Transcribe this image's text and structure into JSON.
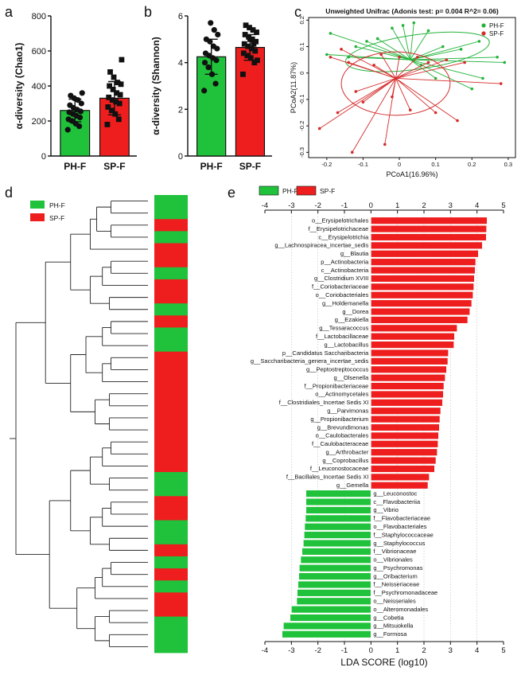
{
  "colors": {
    "ph": "#1fc23a",
    "sp": "#ee1e1e",
    "ph_line": "#22b33a",
    "sp_line": "#d42b2b"
  },
  "panels": {
    "a": "a",
    "b": "b",
    "c": "c",
    "d": "d",
    "e": "e"
  },
  "legend": {
    "ph": "PH-F",
    "sp": "SP-F"
  },
  "chart_data": [
    {
      "id": "a",
      "type": "bar",
      "categories": [
        "PH-F",
        "SP-F"
      ],
      "values": [
        260,
        330
      ],
      "errors": [
        65,
        95
      ],
      "ylabel": "α-diversity (Chao1)",
      "ylim": [
        0,
        800
      ],
      "yticks": [
        0,
        200,
        400,
        600,
        800
      ],
      "points": [
        [
          150,
          170,
          185,
          200,
          210,
          220,
          230,
          240,
          250,
          255,
          265,
          275,
          290,
          300,
          320,
          330,
          345,
          360
        ],
        [
          180,
          210,
          240,
          260,
          280,
          300,
          310,
          320,
          335,
          350,
          360,
          380,
          400,
          410,
          420,
          450,
          480,
          550
        ]
      ]
    },
    {
      "id": "b",
      "type": "bar",
      "categories": [
        "PH-F",
        "SP-F"
      ],
      "values": [
        4.25,
        4.65
      ],
      "errors": [
        0.75,
        0.55
      ],
      "ylabel": "α-diversity (Shannon)",
      "ylim": [
        0,
        6
      ],
      "yticks": [
        0,
        2,
        4,
        6
      ],
      "points": [
        [
          2.8,
          3.1,
          3.5,
          3.8,
          4.0,
          4.1,
          4.2,
          4.3,
          4.4,
          4.6,
          4.7,
          4.9,
          5.0,
          5.2,
          5.4,
          5.7
        ],
        [
          3.5,
          4.0,
          4.2,
          4.3,
          4.4,
          4.5,
          4.6,
          4.7,
          4.8,
          4.9,
          5.0,
          5.1,
          5.2,
          5.3,
          5.4,
          5.5,
          5.6,
          4.1,
          4.8,
          5.0
        ]
      ]
    },
    {
      "id": "c",
      "type": "scatter",
      "title": "Unweighted Unifrac (Adonis test: p= 0.004  R^2= 0.06)",
      "xlabel": "PCoA1(16.96%)",
      "ylabel": "PCoA2(11.87%)",
      "xlim": [
        -0.25,
        0.32
      ],
      "ylim": [
        -0.32,
        0.21
      ],
      "xticks": [
        -0.2,
        -0.1,
        0,
        0.1,
        0.2,
        0.3
      ],
      "yticks": [
        -0.3,
        -0.2,
        -0.1,
        0,
        0.1,
        0.2
      ],
      "groups": [
        {
          "name": "PH-F",
          "centroid": [
            0.03,
            0.05
          ],
          "ellipse": {
            "cx": 0.05,
            "cy": 0.08,
            "rx": 0.2,
            "ry": 0.065,
            "angle": -8
          },
          "points": [
            [
              -0.19,
              0.15
            ],
            [
              -0.12,
              0.1
            ],
            [
              -0.09,
              0.12
            ],
            [
              -0.06,
              0.13
            ],
            [
              -0.02,
              0.17
            ],
            [
              0.01,
              0.18
            ],
            [
              0.04,
              0.19
            ],
            [
              0.08,
              0.16
            ],
            [
              0.12,
              0.1
            ],
            [
              0.17,
              0.09
            ],
            [
              0.22,
              0.12
            ],
            [
              0.27,
              0.06
            ],
            [
              0.29,
              0.04
            ],
            [
              0.23,
              -0.02
            ],
            [
              0.2,
              -0.06
            ],
            [
              0.1,
              -0.02
            ],
            [
              0.06,
              0.03
            ],
            [
              -0.2,
              0.07
            ],
            [
              -0.14,
              0.06
            ]
          ]
        },
        {
          "name": "SP-F",
          "centroid": [
            -0.01,
            -0.02
          ],
          "ellipse": {
            "cx": -0.01,
            "cy": -0.04,
            "rx": 0.15,
            "ry": 0.12,
            "angle": 0
          },
          "points": [
            [
              -0.22,
              -0.21
            ],
            [
              -0.19,
              0.06
            ],
            [
              -0.16,
              0.09
            ],
            [
              -0.14,
              0.04
            ],
            [
              -0.12,
              -0.07
            ],
            [
              -0.1,
              -0.11
            ],
            [
              -0.07,
              0.03
            ],
            [
              -0.05,
              0.07
            ],
            [
              -0.02,
              -0.09
            ],
            [
              0.0,
              0.06
            ],
            [
              0.03,
              -0.14
            ],
            [
              0.05,
              0.06
            ],
            [
              0.08,
              0.04
            ],
            [
              0.1,
              -0.15
            ],
            [
              0.13,
              0.05
            ],
            [
              0.16,
              -0.18
            ],
            [
              0.18,
              0.04
            ],
            [
              0.28,
              -0.04
            ],
            [
              -0.13,
              -0.3
            ],
            [
              -0.04,
              -0.27
            ],
            [
              -0.17,
              -0.15
            ]
          ]
        }
      ]
    },
    {
      "id": "d",
      "type": "dendrogram",
      "leaf_groups": [
        "PH-F",
        "PH-F",
        "SP-F",
        "PH-F",
        "SP-F",
        "SP-F",
        "PH-F",
        "SP-F",
        "SP-F",
        "PH-F",
        "SP-F",
        "PH-F",
        "PH-F",
        "SP-F",
        "SP-F",
        "SP-F",
        "SP-F",
        "SP-F",
        "SP-F",
        "SP-F",
        "SP-F",
        "SP-F",
        "SP-F",
        "PH-F",
        "PH-F",
        "SP-F",
        "SP-F",
        "PH-F",
        "PH-F",
        "SP-F",
        "PH-F",
        "SP-F",
        "PH-F",
        "SP-F",
        "SP-F",
        "PH-F",
        "PH-F",
        "PH-F"
      ],
      "leaf_lengths": [
        0.82,
        0.88,
        0.78,
        0.72,
        0.9,
        0.84,
        0.76,
        0.86,
        0.8,
        0.7,
        0.83,
        0.89,
        0.75,
        0.81,
        0.87,
        0.74,
        0.85,
        0.79,
        0.91,
        0.77,
        0.83,
        0.72,
        0.88,
        0.8,
        0.76,
        0.86,
        0.82,
        0.9,
        0.74,
        0.84,
        0.78,
        0.88,
        0.73,
        0.81,
        0.86,
        0.77,
        0.83,
        0.79
      ]
    },
    {
      "id": "e",
      "type": "bar",
      "orientation": "horizontal",
      "xlabel": "LDA SCORE (log10)",
      "xlim": [
        -4,
        5
      ],
      "xticks": [
        -4,
        -3,
        -2,
        -1,
        0,
        1,
        2,
        3,
        4,
        5
      ],
      "categories": [
        "o__Erysipelotrichales",
        "f__Erysipelotrichaceae",
        "c__Erysipelotrichia",
        "g__Lachnospiracea_incertae_sedis",
        "g__Blautia",
        "p__Actinobacteria",
        "c__Actinobacteria",
        "g__Clostridium XVIII",
        "f__Coriobacteriaceae",
        "o__Coriobacteriales",
        "g__Holdemanella",
        "g__Dorea",
        "g__Ezakiella",
        "g__Tessaracoccus",
        "f__Lactobacillaceae",
        "g__Lactobacillus",
        "p__Candidatus Saccharibacteria",
        "g__Saccharibacteria_genera_incertae_sedis",
        "g__Peptostreptococcus",
        "g__Olsenella",
        "f__Propionibacteriaceae",
        "o__Actinomycetales",
        "f__Clostridiales_Incertae Sedis XI",
        "g__Parvimonas",
        "g__Propionibacterium",
        "g__Brevundimonas",
        "o__Caulobacterales",
        "f__Caulobacteraceae",
        "g__Arthrobacter",
        "g__Coprobacillus",
        "f__Leuconostocaceae",
        "f__Bacillales_Incertae Sedis XI",
        "g__Gemella",
        "g__Leuconostoc",
        "c__Flavobacteriia",
        "g__Vibrio",
        "f__Flavobacteriaceae",
        "o__Flavobacteriales",
        "f__Staphylococcaceae",
        "g__Staphylococcus",
        "f__Vibrionaceae",
        "o__Vibrionales",
        "g__Psychromonas",
        "g__Oribacterium",
        "f__Neisseriaceae",
        "f__Psychromonadaceae",
        "o__Neisseriales",
        "o__Alteromonadales",
        "g__Cobetia",
        "g__Mitsuokella",
        "g__Formosa"
      ],
      "values": [
        4.38,
        4.36,
        4.35,
        4.2,
        4.05,
        3.95,
        3.93,
        3.9,
        3.88,
        3.85,
        3.8,
        3.73,
        3.65,
        3.25,
        3.15,
        3.13,
        2.92,
        2.9,
        2.85,
        2.8,
        2.75,
        2.73,
        2.7,
        2.63,
        2.6,
        2.58,
        2.55,
        2.53,
        2.5,
        2.45,
        2.4,
        2.2,
        2.15,
        -2.45,
        -2.45,
        -2.45,
        -2.47,
        -2.5,
        -2.52,
        -2.55,
        -2.6,
        -2.65,
        -2.7,
        -2.72,
        -2.75,
        -2.78,
        -2.8,
        -3.0,
        -3.05,
        -3.3,
        -3.35
      ],
      "groups": [
        "SP-F",
        "SP-F",
        "SP-F",
        "SP-F",
        "SP-F",
        "SP-F",
        "SP-F",
        "SP-F",
        "SP-F",
        "SP-F",
        "SP-F",
        "SP-F",
        "SP-F",
        "SP-F",
        "SP-F",
        "SP-F",
        "SP-F",
        "SP-F",
        "SP-F",
        "SP-F",
        "SP-F",
        "SP-F",
        "SP-F",
        "SP-F",
        "SP-F",
        "SP-F",
        "SP-F",
        "SP-F",
        "SP-F",
        "SP-F",
        "SP-F",
        "SP-F",
        "SP-F",
        "PH-F",
        "PH-F",
        "PH-F",
        "PH-F",
        "PH-F",
        "PH-F",
        "PH-F",
        "PH-F",
        "PH-F",
        "PH-F",
        "PH-F",
        "PH-F",
        "PH-F",
        "PH-F",
        "PH-F",
        "PH-F",
        "PH-F",
        "PH-F"
      ]
    }
  ]
}
